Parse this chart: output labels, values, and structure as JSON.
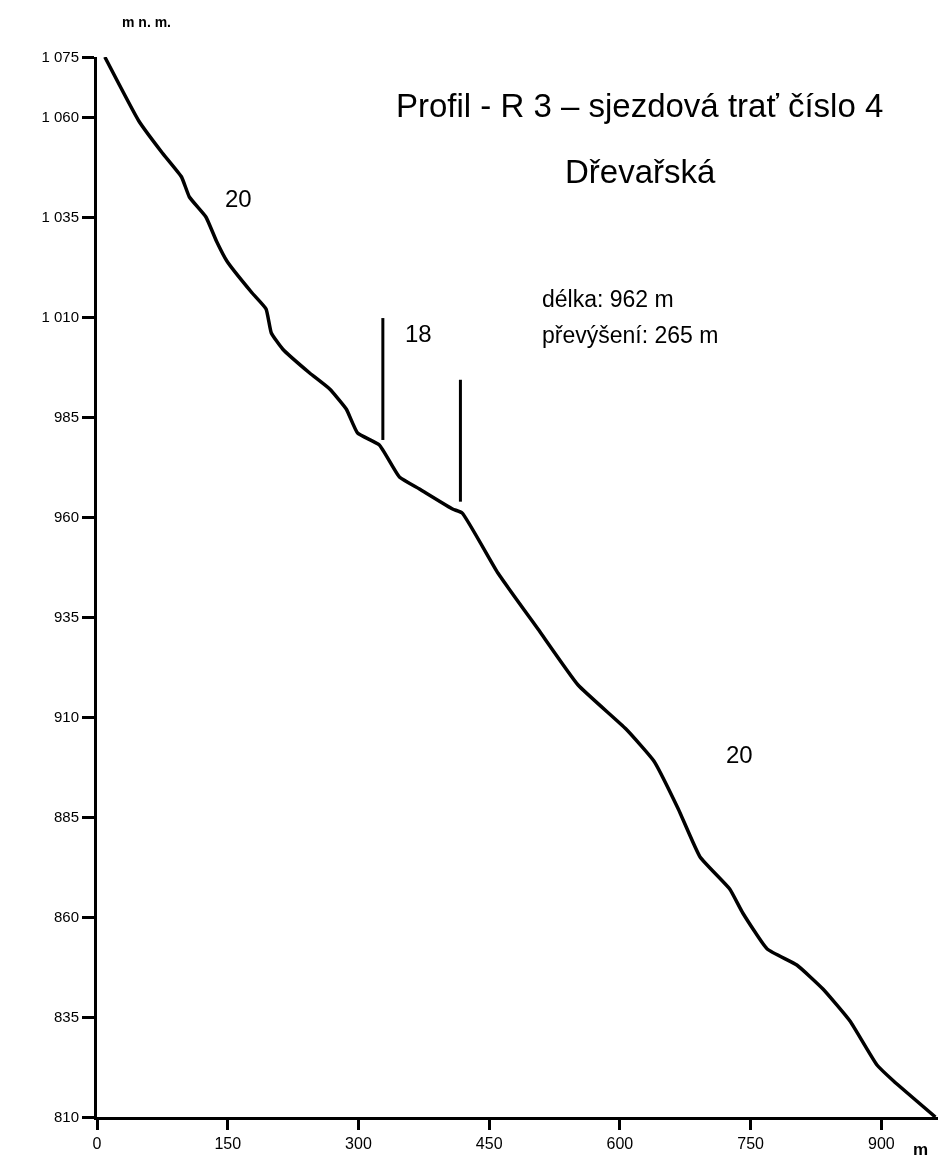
{
  "chart_data": {
    "type": "line",
    "title": "Profil - R 3 – sjezdová trať číslo 4",
    "subtitle": "Dřevařská",
    "xlabel": "m",
    "ylabel": "m n. m.",
    "x": [
      9,
      48,
      75,
      97,
      106,
      125,
      137,
      149,
      178,
      194,
      200,
      213,
      244,
      267,
      286,
      299,
      324,
      347,
      370,
      408,
      419,
      460,
      506,
      552,
      607,
      639,
      667,
      692,
      726,
      741,
      769,
      803,
      833,
      864,
      895,
      914,
      962
    ],
    "series": [
      {
        "color": "#000000",
        "values": [
          1075,
          1059,
          1051,
          1045,
          1040,
          1035,
          1029,
          1024,
          1016,
          1012,
          1006,
          1002,
          996,
          992,
          987,
          981,
          978,
          970,
          967,
          962,
          961,
          946,
          932,
          918,
          907,
          899,
          887,
          875,
          867,
          861,
          852,
          848,
          842,
          834,
          823,
          819,
          810
        ]
      }
    ],
    "xlim": [
      0,
      965
    ],
    "ylim": [
      810,
      1075
    ],
    "xticks": [
      0,
      150,
      300,
      450,
      600,
      750,
      900
    ],
    "yticks": [
      {
        "value": 810,
        "label": "810"
      },
      {
        "value": 835,
        "label": "835"
      },
      {
        "value": 860,
        "label": "860"
      },
      {
        "value": 885,
        "label": "885"
      },
      {
        "value": 910,
        "label": "910"
      },
      {
        "value": 935,
        "label": "935"
      },
      {
        "value": 960,
        "label": "960"
      },
      {
        "value": 985,
        "label": "985"
      },
      {
        "value": 1010,
        "label": "1 010"
      },
      {
        "value": 1035,
        "label": "1 035"
      },
      {
        "value": 1060,
        "label": "1 060"
      },
      {
        "value": 1075,
        "label": "1 075"
      }
    ],
    "ref_lines": [
      {
        "axis": "x",
        "value": 328,
        "color": "#000000"
      },
      {
        "axis": "x",
        "value": 417,
        "color": "#000000"
      }
    ],
    "annotations": [
      "20",
      "18",
      "20",
      "délka: 962 m",
      "převýšení: 265 m"
    ],
    "grid": false,
    "marker": "none",
    "line_style": "solid"
  }
}
